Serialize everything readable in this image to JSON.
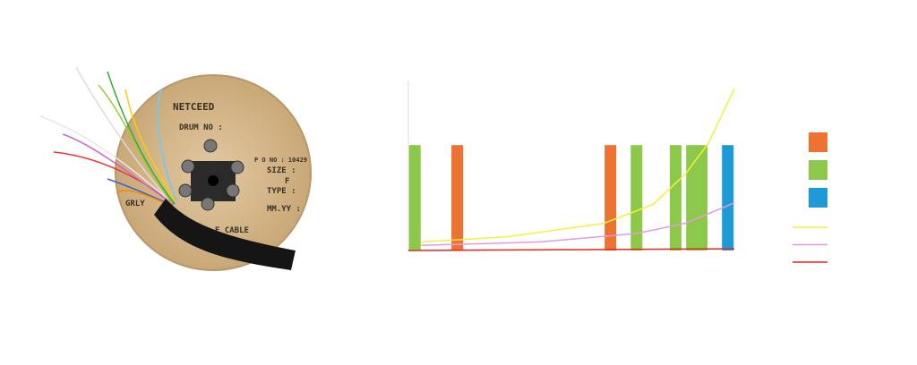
{
  "drum_labels": [
    "NETCEED",
    "DRUM NO :",
    "P O NO : 10429",
    "SIZE :",
    "F",
    "TYPE :",
    "MM.YY :",
    "GRLY",
    "E CABLE"
  ],
  "chart_data": {
    "type": "bar",
    "xlim": [
      0,
      100
    ],
    "ylim": [
      0,
      100
    ],
    "series": [
      {
        "type": "bar",
        "color": "#ed7332",
        "x": [
          15,
          62
        ],
        "values": [
          62,
          62
        ]
      },
      {
        "type": "bar",
        "color": "#8cc94a",
        "x": [
          2,
          70,
          82,
          87,
          90
        ],
        "values": [
          62,
          62,
          62,
          62,
          62
        ]
      },
      {
        "type": "bar",
        "color": "#1d9ad6",
        "x": [
          98
        ],
        "values": [
          62
        ]
      },
      {
        "type": "line",
        "color": "#f2f23a",
        "x": [
          4,
          30,
          60,
          75,
          85,
          92,
          100
        ],
        "values": [
          5,
          8,
          16,
          27,
          45,
          63,
          95
        ]
      },
      {
        "type": "line",
        "color": "#e59ae0",
        "x": [
          4,
          40,
          70,
          85,
          100
        ],
        "values": [
          3,
          5,
          10,
          16,
          28
        ]
      },
      {
        "type": "line",
        "color": "#e0281e",
        "x": [
          0,
          100
        ],
        "values": [
          0,
          1
        ]
      }
    ]
  }
}
